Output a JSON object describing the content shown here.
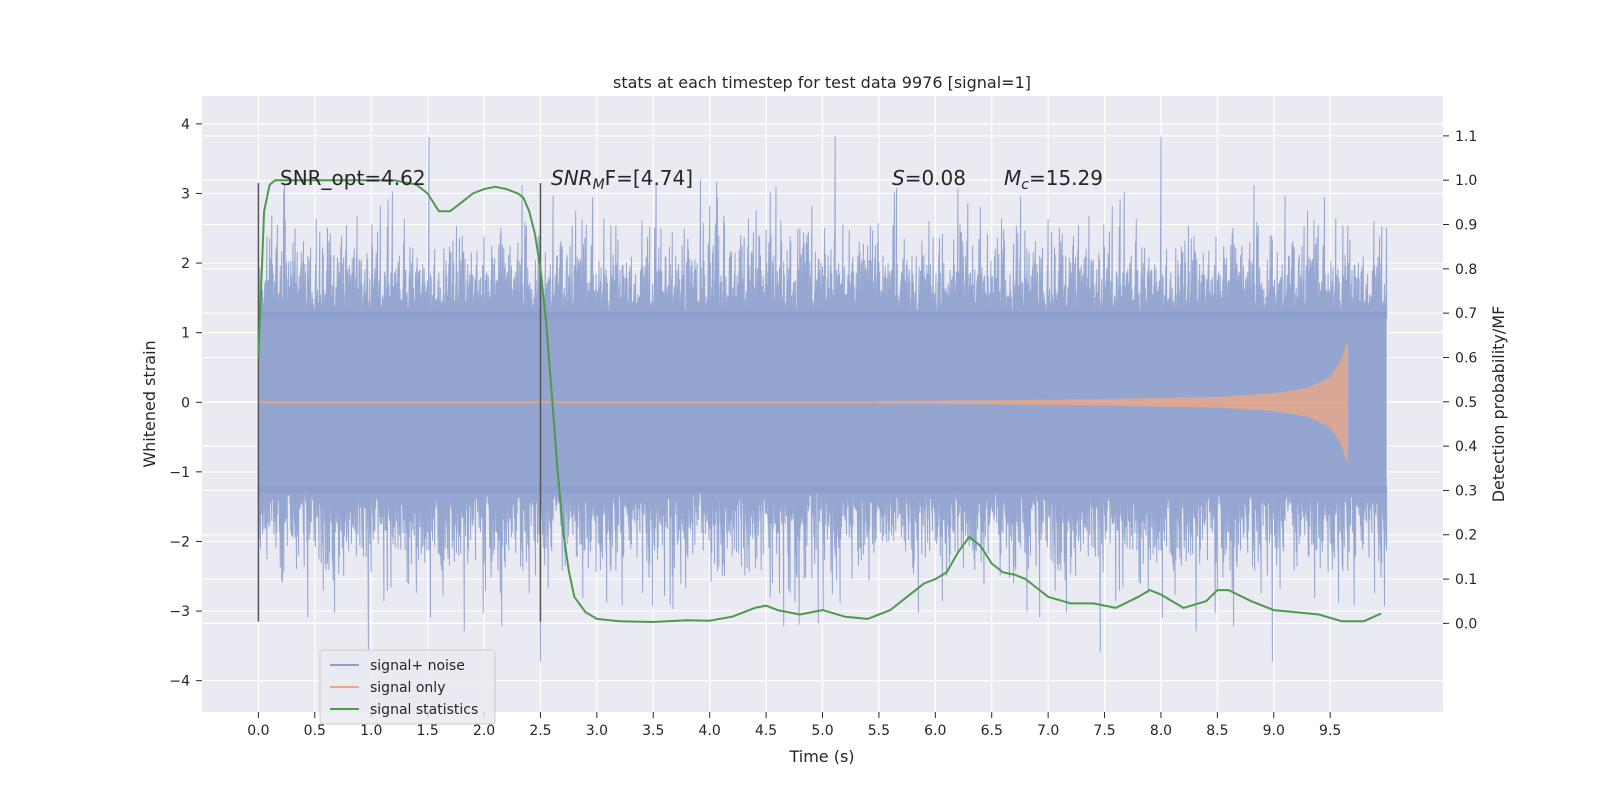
{
  "chart_data": {
    "type": "line",
    "title": "stats at each timestep for test data 9976 [signal=1]",
    "xlabel": "Time (s)",
    "ylabel_left": "Whitened strain",
    "ylabel_right": "Detection probability/MF",
    "xlim": [
      -0.5,
      10.5
    ],
    "ylim_left": [
      -4.45,
      4.4
    ],
    "ylim_right": [
      -0.2,
      1.19
    ],
    "xticks": [
      "0.0",
      "0.5",
      "1.0",
      "1.5",
      "2.0",
      "2.5",
      "3.0",
      "3.5",
      "4.0",
      "4.5",
      "5.0",
      "5.5",
      "6.0",
      "6.5",
      "7.0",
      "7.5",
      "8.0",
      "8.5",
      "9.0",
      "9.5"
    ],
    "yticks_left": [
      "4",
      "3",
      "2",
      "1",
      "0",
      "−1",
      "−2",
      "−3",
      "−4"
    ],
    "yticks_right": [
      "1.1",
      "1.0",
      "0.9",
      "0.8",
      "0.7",
      "0.6",
      "0.5",
      "0.4",
      "0.3",
      "0.2",
      "0.1",
      "0.0"
    ],
    "grid": true,
    "legend": {
      "placement": "lower-left",
      "entries": [
        {
          "name": "signal+ noise",
          "color": "#8c9fcc"
        },
        {
          "name": "signal only",
          "color": "#e5a88b"
        },
        {
          "name": "signal statistics",
          "color": "#4c9a4c"
        }
      ]
    },
    "annotations": {
      "snr_opt": "SNR_opt=4.62",
      "snr_mf_a": "SNR",
      "snr_mf_sub": "M",
      "snr_mf_b": "F=[4.74]",
      "s_sym": "S",
      "s_val": "=0.08",
      "mc_sym": "M",
      "mc_sub": "c",
      "mc_val": "=15.29"
    },
    "vlines": [
      0.0,
      2.5
    ],
    "noise": {
      "x_range": [
        0.0,
        10.0
      ],
      "core_band": [
        -1.3,
        1.3
      ],
      "typical_peak": [
        -2.0,
        2.0
      ],
      "extreme_range": [
        -4.0,
        4.0
      ]
    },
    "signal_only": {
      "x_range": [
        5.5,
        9.65
      ],
      "envelope_x": [
        5.5,
        6.5,
        7.5,
        8.5,
        9.0,
        9.3,
        9.5,
        9.6,
        9.65
      ],
      "envelope_amp": [
        0.01,
        0.02,
        0.04,
        0.07,
        0.12,
        0.2,
        0.35,
        0.6,
        0.85
      ]
    },
    "series": [
      {
        "name": "signal statistics",
        "x": [
          0.0,
          0.05,
          0.1,
          0.15,
          0.2,
          0.3,
          0.5,
          0.8,
          1.0,
          1.2,
          1.4,
          1.5,
          1.6,
          1.7,
          1.8,
          1.9,
          2.0,
          2.1,
          2.2,
          2.3,
          2.35,
          2.4,
          2.45,
          2.5,
          2.55,
          2.6,
          2.65,
          2.7,
          2.75,
          2.8,
          2.9,
          3.0,
          3.2,
          3.5,
          3.8,
          4.0,
          4.2,
          4.4,
          4.5,
          4.6,
          4.8,
          5.0,
          5.2,
          5.4,
          5.6,
          5.8,
          5.9,
          6.0,
          6.1,
          6.2,
          6.3,
          6.4,
          6.5,
          6.6,
          6.7,
          6.8,
          7.0,
          7.2,
          7.4,
          7.6,
          7.8,
          7.9,
          8.0,
          8.2,
          8.4,
          8.5,
          8.6,
          8.8,
          9.0,
          9.2,
          9.4,
          9.6,
          9.8,
          9.95
        ],
        "values": [
          0.6,
          0.93,
          0.99,
          1.0,
          1.0,
          1.0,
          1.0,
          1.0,
          1.0,
          1.0,
          0.99,
          0.97,
          0.93,
          0.93,
          0.95,
          0.97,
          0.98,
          0.985,
          0.98,
          0.97,
          0.96,
          0.93,
          0.88,
          0.8,
          0.68,
          0.52,
          0.35,
          0.21,
          0.12,
          0.06,
          0.025,
          0.01,
          0.005,
          0.003,
          0.007,
          0.006,
          0.015,
          0.035,
          0.04,
          0.03,
          0.02,
          0.03,
          0.015,
          0.01,
          0.03,
          0.07,
          0.09,
          0.1,
          0.115,
          0.16,
          0.195,
          0.175,
          0.135,
          0.115,
          0.11,
          0.1,
          0.06,
          0.045,
          0.045,
          0.035,
          0.06,
          0.075,
          0.065,
          0.035,
          0.05,
          0.075,
          0.075,
          0.05,
          0.03,
          0.025,
          0.02,
          0.005,
          0.005,
          0.022
        ]
      }
    ]
  }
}
